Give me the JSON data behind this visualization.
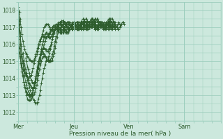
{
  "title": "Pression niveau de la mer( hPa )",
  "bg_color": "#cce8dd",
  "grid_color": "#99ccbb",
  "line_color": "#2d5c2d",
  "ylim": [
    1011.5,
    1018.5
  ],
  "yticks": [
    1012,
    1013,
    1014,
    1015,
    1016,
    1017,
    1018
  ],
  "day_labels": [
    "Mer",
    "Jeu",
    "Ven",
    "Sam"
  ],
  "day_positions": [
    0,
    60,
    120,
    180
  ],
  "xlim": [
    0,
    220
  ],
  "series": [
    {
      "start": 0,
      "data": [
        1018.2,
        1017.9,
        1017.5,
        1017.0,
        1016.6,
        1016.2,
        1015.9,
        1015.7,
        1015.5,
        1015.4,
        1015.3,
        1015.2,
        1015.1,
        1015.1,
        1015.0,
        1015.0,
        1015.0,
        1015.1,
        1015.2,
        1015.3,
        1015.4,
        1015.6,
        1015.8,
        1016.0,
        1016.2,
        1016.4,
        1016.6,
        1016.8,
        1017.0,
        1017.1,
        1017.2,
        1017.2,
        1017.2,
        1017.1,
        1017.0,
        1016.9,
        1016.8,
        1016.8,
        1016.8,
        1016.8,
        1016.9,
        1017.0,
        1017.1,
        1017.2,
        1017.3,
        1017.3,
        1017.3,
        1017.2,
        1017.1,
        1017.0,
        1016.9,
        1016.8,
        1016.8,
        1016.7,
        1016.7,
        1016.8,
        1016.9,
        1017.0,
        1017.1,
        1017.2,
        1017.2,
        1017.2,
        1017.1,
        1017.0,
        1016.9,
        1016.9,
        1016.9,
        1017.0,
        1017.1,
        1017.2,
        1017.3,
        1017.3,
        1017.2,
        1017.1,
        1017.0,
        1016.9,
        1016.9,
        1017.0,
        1017.1,
        1017.2,
        1017.3,
        1017.3,
        1017.2,
        1017.1,
        1017.0,
        1016.9,
        1016.9,
        1017.0,
        1017.1,
        1017.2,
        1017.3,
        1017.3,
        1017.2,
        1017.1,
        1017.0,
        1017.0,
        1017.1,
        1017.2,
        1017.3,
        1017.4,
        1017.5,
        1017.5,
        1017.5,
        1017.4,
        1017.3,
        1017.2,
        1017.1,
        1017.0,
        1016.9,
        1016.9,
        1017.0,
        1017.1,
        1017.2,
        1017.3,
        1017.3,
        1017.2
      ]
    },
    {
      "start": 0,
      "data": [
        1017.8,
        1017.2,
        1016.5,
        1015.9,
        1015.4,
        1015.0,
        1014.7,
        1014.5,
        1014.3,
        1014.1,
        1013.9,
        1013.7,
        1013.5,
        1013.3,
        1013.1,
        1013.0,
        1013.0,
        1013.1,
        1013.2,
        1013.4,
        1013.6,
        1013.9,
        1014.2,
        1014.5,
        1014.8,
        1015.0,
        1015.2,
        1015.3,
        1015.3,
        1015.3,
        1015.2,
        1015.1,
        1015.0,
        1015.0,
        1015.0,
        1015.1,
        1015.2,
        1015.4,
        1015.6,
        1015.9,
        1016.2,
        1016.5,
        1016.8,
        1017.0,
        1017.2,
        1017.3,
        1017.2,
        1017.1,
        1017.0,
        1016.9,
        1016.8,
        1016.7,
        1016.7,
        1016.7,
        1016.8,
        1016.9,
        1017.0,
        1017.1,
        1017.2,
        1017.2,
        1017.2,
        1017.1,
        1017.0,
        1016.9,
        1016.9,
        1017.0,
        1017.1,
        1017.2,
        1017.3,
        1017.3,
        1017.2,
        1017.1,
        1017.0,
        1016.9,
        1016.9,
        1017.0,
        1017.1,
        1017.2,
        1017.3,
        1017.3,
        1017.2,
        1017.1,
        1017.0,
        1016.9,
        1016.9,
        1017.0,
        1017.1,
        1017.2,
        1017.3,
        1017.3,
        1017.2,
        1017.1,
        1017.0,
        1017.0,
        1017.1,
        1017.2,
        1017.3,
        1017.4,
        1017.5,
        1017.5,
        1017.4,
        1017.3,
        1017.2,
        1017.1,
        1017.0,
        1016.9,
        1017.0,
        1017.1,
        1017.2,
        1017.3,
        1017.2,
        1017.1
      ]
    },
    {
      "start": 0,
      "data": [
        1017.5,
        1016.8,
        1016.0,
        1015.3,
        1014.7,
        1014.2,
        1013.8,
        1013.5,
        1013.2,
        1013.0,
        1012.8,
        1012.7,
        1012.7,
        1012.7,
        1012.8,
        1013.0,
        1013.2,
        1013.5,
        1013.8,
        1014.1,
        1014.4,
        1014.7,
        1015.0,
        1015.2,
        1015.4,
        1015.5,
        1015.5,
        1015.5,
        1015.4,
        1015.3,
        1015.2,
        1015.2,
        1015.2,
        1015.3,
        1015.5,
        1015.7,
        1016.0,
        1016.3,
        1016.6,
        1016.9,
        1017.1,
        1017.2,
        1017.2,
        1017.1,
        1017.0,
        1016.9,
        1016.8,
        1016.7,
        1016.7,
        1016.7,
        1016.8,
        1016.9,
        1017.0,
        1017.1,
        1017.2,
        1017.3,
        1017.3,
        1017.2,
        1017.1,
        1017.0,
        1016.9,
        1016.9,
        1017.0,
        1017.1,
        1017.2,
        1017.3,
        1017.3,
        1017.2,
        1017.1,
        1017.0,
        1016.9,
        1016.9,
        1017.0,
        1017.1,
        1017.2,
        1017.3,
        1017.3,
        1017.2,
        1017.1,
        1017.0,
        1017.0,
        1017.1,
        1017.2,
        1017.3,
        1017.4,
        1017.5,
        1017.5,
        1017.4,
        1017.3,
        1017.2,
        1017.1,
        1017.0,
        1017.0,
        1017.1,
        1017.2,
        1017.3,
        1017.2,
        1017.1,
        1017.0,
        1016.9,
        1017.0,
        1017.1,
        1017.2,
        1017.3,
        1017.2,
        1017.1
      ]
    },
    {
      "start": 0,
      "data": [
        1016.3,
        1015.8,
        1015.3,
        1014.8,
        1014.4,
        1014.1,
        1013.8,
        1013.6,
        1013.4,
        1013.2,
        1013.1,
        1013.0,
        1012.9,
        1012.9,
        1013.0,
        1013.1,
        1013.3,
        1013.5,
        1013.8,
        1014.1,
        1014.4,
        1014.7,
        1015.0,
        1015.2,
        1015.4,
        1015.6,
        1015.7,
        1015.8,
        1015.8,
        1015.7,
        1015.7,
        1015.6,
        1015.6,
        1015.7,
        1015.8,
        1015.9,
        1016.1,
        1016.3,
        1016.5,
        1016.7,
        1016.9,
        1017.0,
        1017.0,
        1016.9,
        1016.8,
        1016.7,
        1016.7,
        1016.7,
        1016.8,
        1016.9,
        1017.0,
        1017.1,
        1017.2,
        1017.3,
        1017.3,
        1017.2,
        1017.1,
        1017.0,
        1016.9,
        1016.9,
        1017.0,
        1017.1,
        1017.2,
        1017.3,
        1017.3,
        1017.2,
        1017.1,
        1017.0,
        1016.9,
        1016.9,
        1017.0,
        1017.1,
        1017.2,
        1017.3,
        1017.3,
        1017.2,
        1017.1,
        1017.0,
        1017.0,
        1017.1,
        1017.2,
        1017.3,
        1017.4,
        1017.5,
        1017.5,
        1017.4,
        1017.3,
        1017.2,
        1017.1,
        1017.0,
        1017.0,
        1017.1,
        1017.2,
        1017.3,
        1017.2,
        1017.1,
        1017.0,
        1016.9,
        1017.0,
        1017.1,
        1017.2,
        1017.3,
        1017.2,
        1017.1,
        1017.0,
        1016.9
      ]
    },
    {
      "start": 0,
      "data": [
        1015.8,
        1015.5,
        1015.2,
        1014.9,
        1014.7,
        1014.5,
        1014.4,
        1014.3,
        1014.2,
        1014.1,
        1014.1,
        1014.0,
        1014.1,
        1014.1,
        1014.2,
        1014.4,
        1014.6,
        1014.9,
        1015.1,
        1015.4,
        1015.6,
        1015.8,
        1016.0,
        1016.2,
        1016.3,
        1016.4,
        1016.5,
        1016.5,
        1016.5,
        1016.4,
        1016.4,
        1016.4,
        1016.5,
        1016.6,
        1016.7,
        1016.8,
        1016.9,
        1017.0,
        1017.1,
        1017.1,
        1017.1,
        1017.0,
        1016.9,
        1016.8,
        1016.8,
        1016.9,
        1017.0,
        1017.1,
        1017.2,
        1017.3,
        1017.3,
        1017.2,
        1017.1,
        1017.0,
        1016.9,
        1016.9,
        1017.0,
        1017.1,
        1017.2,
        1017.3,
        1017.3,
        1017.2,
        1017.1,
        1017.0,
        1016.9,
        1016.9,
        1017.0,
        1017.1,
        1017.2,
        1017.3,
        1017.3,
        1017.2,
        1017.1,
        1017.0,
        1017.0,
        1017.1,
        1017.2,
        1017.3,
        1017.4,
        1017.5,
        1017.5,
        1017.4,
        1017.3,
        1017.2,
        1017.1,
        1017.0,
        1017.0,
        1017.1,
        1017.2,
        1017.3,
        1017.2,
        1017.1,
        1017.0,
        1016.9,
        1017.0,
        1017.1,
        1017.2,
        1017.3,
        1017.2,
        1017.1,
        1017.0,
        1016.9,
        1017.0,
        1017.1,
        1017.2,
        1017.3
      ]
    },
    {
      "start": 5,
      "data": [
        1015.5,
        1015.1,
        1014.8,
        1014.5,
        1014.3,
        1014.1,
        1013.9,
        1013.7,
        1013.6,
        1013.5,
        1013.4,
        1013.4,
        1013.5,
        1013.6,
        1013.8,
        1014.0,
        1014.3,
        1014.6,
        1014.9,
        1015.1,
        1015.4,
        1015.6,
        1015.8,
        1016.0,
        1016.2,
        1016.4,
        1016.5,
        1016.5,
        1016.4,
        1016.4,
        1016.4,
        1016.5,
        1016.6,
        1016.7,
        1016.8,
        1016.9,
        1017.0,
        1017.1,
        1017.1,
        1017.0,
        1016.9,
        1016.8,
        1016.8,
        1016.8,
        1016.9,
        1017.0,
        1017.1,
        1017.2,
        1017.3,
        1017.3,
        1017.2,
        1017.1,
        1017.0,
        1016.9,
        1016.9,
        1017.0,
        1017.1,
        1017.2,
        1017.3,
        1017.3,
        1017.2,
        1017.1,
        1017.0,
        1017.0,
        1017.1,
        1017.2,
        1017.3,
        1017.4,
        1017.5,
        1017.5,
        1017.4,
        1017.3,
        1017.2,
        1017.1,
        1017.0,
        1017.0,
        1017.1,
        1017.2,
        1017.3,
        1017.2,
        1017.1,
        1017.0,
        1016.9,
        1017.0,
        1017.1,
        1017.2,
        1017.3,
        1017.2,
        1017.1,
        1017.0,
        1016.9,
        1017.0,
        1017.1,
        1017.2,
        1017.3,
        1017.2,
        1017.1
      ]
    },
    {
      "start": 8,
      "data": [
        1015.2,
        1015.0,
        1014.7,
        1014.5,
        1014.3,
        1014.1,
        1013.9,
        1013.8,
        1013.7,
        1013.7,
        1013.8,
        1014.0,
        1014.2,
        1014.5,
        1014.8,
        1015.1,
        1015.4,
        1015.7,
        1016.0,
        1016.2,
        1016.4,
        1016.6,
        1016.7,
        1016.7,
        1016.6,
        1016.6,
        1016.6,
        1016.7,
        1016.8,
        1016.9,
        1017.0,
        1017.1,
        1017.1,
        1017.0,
        1016.9,
        1016.8,
        1016.8,
        1016.8,
        1016.9,
        1017.0,
        1017.1,
        1017.2,
        1017.3,
        1017.3,
        1017.2,
        1017.1,
        1017.0,
        1016.9,
        1016.9,
        1017.0,
        1017.1,
        1017.2,
        1017.3,
        1017.3,
        1017.2,
        1017.1,
        1017.0,
        1017.0,
        1017.1,
        1017.2,
        1017.3,
        1017.4,
        1017.5,
        1017.5,
        1017.4,
        1017.3,
        1017.2,
        1017.1,
        1017.0,
        1017.0,
        1017.1,
        1017.2,
        1017.3,
        1017.2,
        1017.1,
        1017.0,
        1016.9,
        1017.0,
        1017.1,
        1017.2,
        1017.3,
        1017.2,
        1017.1,
        1017.0,
        1016.9,
        1017.0,
        1017.1,
        1017.2,
        1017.3,
        1017.2,
        1017.1
      ]
    },
    {
      "start": 0,
      "data": [
        1018.0,
        1017.4,
        1016.7,
        1016.0,
        1015.4,
        1014.9,
        1014.5,
        1014.1,
        1013.8,
        1013.6,
        1013.4,
        1013.2,
        1013.1,
        1013.0,
        1013.0,
        1012.9,
        1012.8,
        1012.7,
        1012.6,
        1012.5,
        1012.5,
        1012.6,
        1012.8,
        1013.0,
        1013.3,
        1013.7,
        1014.0,
        1014.3,
        1014.6,
        1014.8,
        1015.0,
        1015.1,
        1015.1,
        1015.1,
        1015.0,
        1015.0,
        1015.0,
        1015.1,
        1015.3,
        1015.5,
        1015.8,
        1016.1,
        1016.4,
        1016.7,
        1017.0,
        1017.2,
        1017.3,
        1017.4,
        1017.4,
        1017.4,
        1017.3,
        1017.2,
        1017.1,
        1017.0,
        1016.9,
        1016.9,
        1016.9,
        1017.0,
        1017.1,
        1017.2,
        1017.3,
        1017.3,
        1017.2,
        1017.1,
        1017.0,
        1016.9,
        1016.9,
        1017.0,
        1017.1,
        1017.2,
        1017.3,
        1017.3,
        1017.2,
        1017.1,
        1017.0,
        1017.0,
        1017.1,
        1017.2,
        1017.3,
        1017.4,
        1017.5,
        1017.5,
        1017.4,
        1017.3,
        1017.2,
        1017.1,
        1017.0,
        1017.0,
        1017.1,
        1017.2,
        1017.3,
        1017.2,
        1017.1,
        1017.0,
        1016.9,
        1017.0,
        1017.1,
        1017.2,
        1017.3,
        1017.2,
        1017.1,
        1017.0,
        1016.9,
        1017.0,
        1017.1,
        1017.2
      ]
    }
  ]
}
